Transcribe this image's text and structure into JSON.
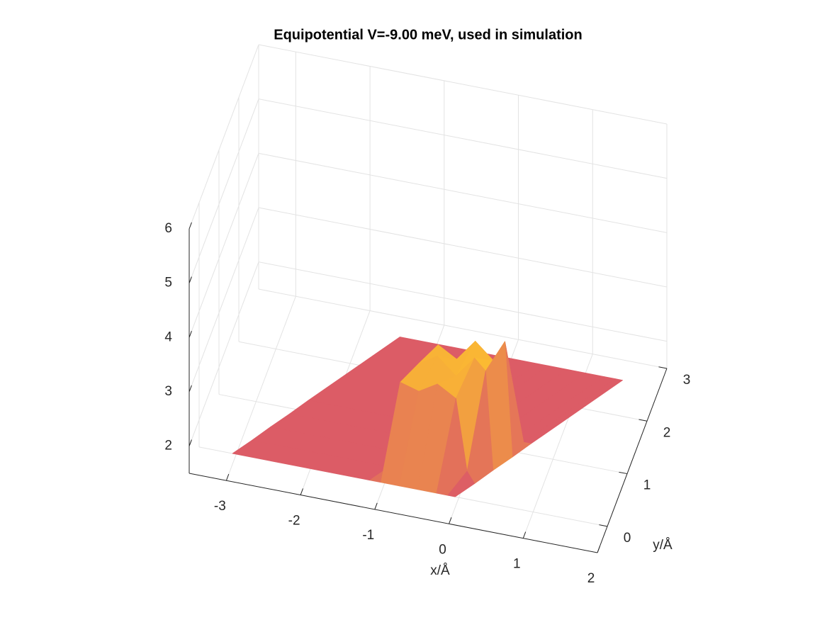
{
  "chart_data": {
    "type": "surface",
    "title": "Equipotential V=-9.00 meV, used in simulation",
    "xlabel": "x/Å",
    "ylabel": "y/Å",
    "xlim": [
      -3.5,
      2
    ],
    "ylim": [
      -0.5,
      3
    ],
    "zlim": [
      1.5,
      6
    ],
    "xticks": [
      -3,
      -2,
      -1,
      0,
      1,
      2
    ],
    "yticks": [
      0,
      1,
      2,
      3
    ],
    "zticks": [
      2,
      3,
      4,
      5,
      6
    ],
    "grid": true,
    "colormap": [
      "#dc5c66",
      "#fec42c"
    ],
    "y": [
      0,
      0.3,
      0.6,
      0.9,
      1.2,
      2.64
    ],
    "x": [
      [
        -3.05,
        -1.2,
        -1.05,
        -0.8,
        -0.55,
        -0.3,
        -0.15,
        -0.05
      ],
      [
        -2.87,
        -1.02,
        -0.87,
        -0.62,
        -0.37,
        -0.12,
        0.03,
        0.13
      ],
      [
        -2.7,
        -0.85,
        -0.7,
        -0.45,
        -0.2,
        0.05,
        0.2,
        0.3
      ],
      [
        -2.52,
        -0.67,
        -0.52,
        -0.27,
        -0.02,
        0.23,
        0.38,
        0.48
      ],
      [
        -2.35,
        -0.5,
        -0.35,
        -0.1,
        0.15,
        0.4,
        0.55,
        0.65
      ],
      [
        -1.5,
        0.35,
        0.5,
        0.75,
        1.0,
        1.25,
        1.4,
        1.5
      ]
    ],
    "z": [
      [
        1.5,
        1.5,
        1.5,
        1.5,
        1.5,
        1.5,
        1.5,
        1.5
      ],
      [
        1.5,
        1.5,
        3.1,
        3.0,
        3.2,
        3.0,
        1.7,
        1.5
      ],
      [
        1.5,
        1.5,
        3.2,
        3.4,
        3.1,
        3.5,
        3.3,
        1.5
      ],
      [
        1.5,
        1.5,
        3.3,
        3.1,
        3.5,
        3.2,
        3.6,
        1.5
      ],
      [
        1.5,
        1.5,
        1.5,
        1.5,
        1.5,
        1.5,
        1.5,
        1.5
      ],
      [
        1.5,
        1.5,
        1.5,
        1.5,
        1.5,
        1.5,
        1.5,
        1.5
      ]
    ]
  }
}
